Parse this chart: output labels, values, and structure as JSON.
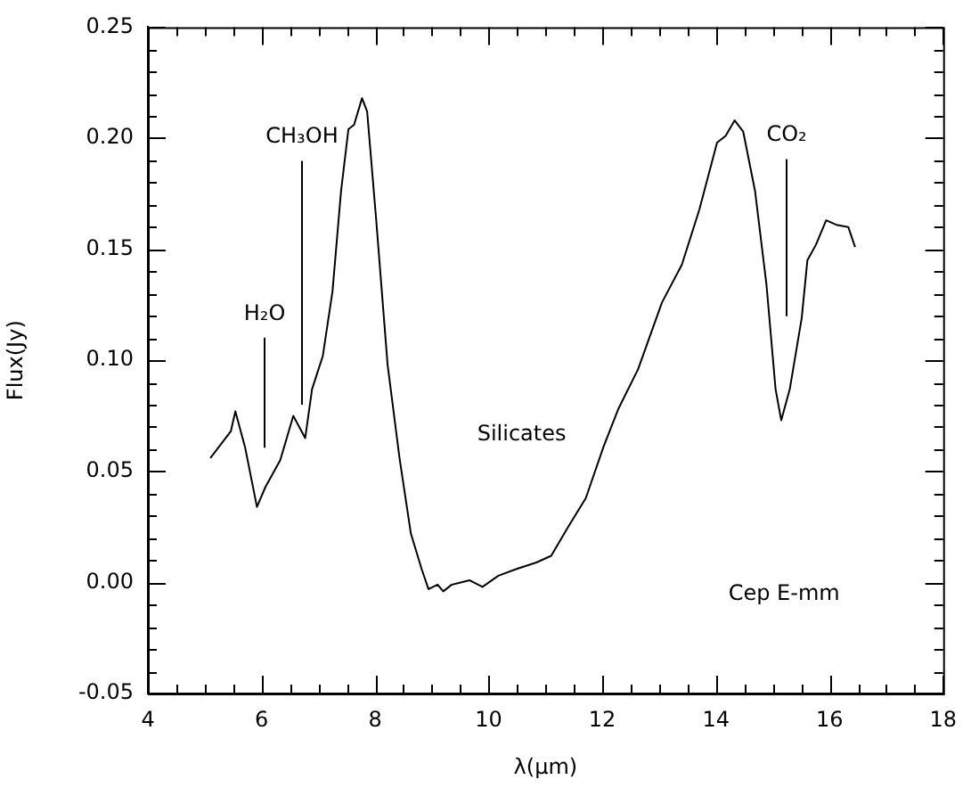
{
  "chart_data": {
    "type": "line",
    "xlabel": "λ(μm)",
    "ylabel": "Flux(Jy)",
    "series": [
      {
        "color": "#000000",
        "x": [
          5.1,
          5.46,
          5.54,
          5.71,
          5.92,
          6.07,
          6.33,
          6.56,
          6.77,
          6.89,
          7.08,
          7.25,
          7.4,
          7.53,
          7.63,
          7.77,
          7.86,
          8.02,
          8.22,
          8.43,
          8.63,
          8.82,
          8.94,
          9.1,
          9.2,
          9.35,
          9.66,
          9.89,
          10.17,
          10.48,
          10.84,
          11.1,
          11.4,
          11.71,
          12.02,
          12.28,
          12.63,
          13.05,
          13.4,
          13.71,
          14.02,
          14.17,
          14.33,
          14.48,
          14.69,
          14.89,
          15.05,
          15.15,
          15.3,
          15.51,
          15.61,
          15.76,
          15.94,
          16.12,
          16.33,
          16.45
        ],
        "values": [
          0.056,
          0.068,
          0.077,
          0.061,
          0.034,
          0.043,
          0.055,
          0.075,
          0.065,
          0.087,
          0.102,
          0.131,
          0.176,
          0.204,
          0.206,
          0.218,
          0.212,
          0.163,
          0.098,
          0.056,
          0.022,
          0.006,
          -0.003,
          -0.001,
          -0.004,
          -0.001,
          0.001,
          -0.002,
          0.003,
          0.006,
          0.009,
          0.012,
          0.025,
          0.038,
          0.061,
          0.078,
          0.096,
          0.126,
          0.143,
          0.168,
          0.198,
          0.201,
          0.208,
          0.203,
          0.176,
          0.134,
          0.087,
          0.073,
          0.087,
          0.119,
          0.145,
          0.152,
          0.163,
          0.161,
          0.16,
          0.151
        ]
      }
    ],
    "xlim": [
      4,
      18
    ],
    "xticks": [
      4,
      {
        "value": 4.5,
        "label": null
      },
      {
        "value": 5,
        "label": null
      },
      {
        "value": 5.5,
        "label": null
      },
      6,
      {
        "value": 6.5,
        "label": null
      },
      {
        "value": 7,
        "label": null
      },
      {
        "value": 7.5,
        "label": null
      },
      8,
      {
        "value": 8.5,
        "label": null
      },
      {
        "value": 9,
        "label": null
      },
      {
        "value": 9.5,
        "label": null
      },
      10,
      {
        "value": 10.5,
        "label": null
      },
      {
        "value": 11,
        "label": null
      },
      {
        "value": 11.5,
        "label": null
      },
      12,
      {
        "value": 12.5,
        "label": null
      },
      {
        "value": 13,
        "label": null
      },
      {
        "value": 13.5,
        "label": null
      },
      14,
      {
        "value": 14.5,
        "label": null
      },
      {
        "value": 15,
        "label": null
      },
      {
        "value": 15.5,
        "label": null
      },
      16,
      {
        "value": 16.5,
        "label": null
      },
      {
        "value": 17,
        "label": null
      },
      {
        "value": 17.5,
        "label": null
      },
      18
    ],
    "ylim": [
      -0.05,
      0.25
    ],
    "yticks": [
      {
        "value": -0.05,
        "label": "-0.05"
      },
      {
        "value": 0,
        "label": "0.00"
      },
      {
        "value": 0.05,
        "label": "0.05"
      },
      {
        "value": 0.1,
        "label": "0.10"
      },
      {
        "value": 0.15,
        "label": "0.15"
      },
      {
        "value": 0.2,
        "label": "0.20"
      },
      {
        "value": 0.25,
        "label": "0.25"
      }
    ],
    "grid": false,
    "legend": false,
    "marker": "none",
    "line_style": "solid",
    "annotations": [
      "H₂O",
      {
        "text": "CH₃OH",
        "x": 6.7,
        "y": 0.08
      },
      "CO₂",
      "Silicates",
      "Cep E-mm"
    ]
  }
}
